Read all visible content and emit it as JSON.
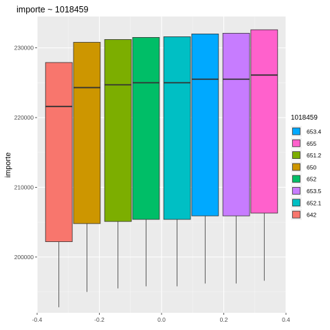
{
  "chart_data": {
    "type": "boxplot",
    "title": "importe ~ 1018459",
    "xlabel": "",
    "ylabel": "importe",
    "xlim": [
      -0.4,
      0.4
    ],
    "ylim": [
      192000,
      234500
    ],
    "x_ticks": [
      -0.4,
      -0.2,
      0.0,
      0.2,
      0.4
    ],
    "x_tick_labels": [
      "-0.4",
      "-0.2",
      "0.0",
      "0.2",
      "0.4"
    ],
    "y_ticks": [
      200000,
      210000,
      220000,
      230000
    ],
    "y_tick_labels": [
      "200000",
      "210000",
      "220000",
      "230000"
    ],
    "grid": true,
    "legend": {
      "title": "1018459",
      "placement": "right",
      "entries": [
        {
          "label": "653.4",
          "color": "#00A9FF"
        },
        {
          "label": "655",
          "color": "#FF61CC"
        },
        {
          "label": "651.2",
          "color": "#7CAE00"
        },
        {
          "label": "650",
          "color": "#CD9600"
        },
        {
          "label": "652",
          "color": "#00BE67"
        },
        {
          "label": "653.5",
          "color": "#C77CFF"
        },
        {
          "label": "652.1",
          "color": "#00BFC4"
        },
        {
          "label": "642",
          "color": "#F8766D"
        }
      ]
    },
    "series": [
      {
        "group": "642",
        "x": -0.33,
        "ymin": 192800,
        "q1": 202200,
        "median": 221600,
        "q3": 227900,
        "ymax": 227900,
        "color": "#F8766D"
      },
      {
        "group": "650",
        "x": -0.24,
        "ymin": 195000,
        "q1": 204800,
        "median": 224300,
        "q3": 230800,
        "ymax": 230800,
        "color": "#CD9600"
      },
      {
        "group": "651.2",
        "x": -0.14,
        "ymin": 195500,
        "q1": 205100,
        "median": 224700,
        "q3": 231200,
        "ymax": 231200,
        "color": "#7CAE00"
      },
      {
        "group": "652",
        "x": -0.05,
        "ymin": 195800,
        "q1": 205400,
        "median": 225000,
        "q3": 231500,
        "ymax": 231500,
        "color": "#00BE67"
      },
      {
        "group": "652.1",
        "x": 0.05,
        "ymin": 195800,
        "q1": 205400,
        "median": 225000,
        "q3": 231600,
        "ymax": 231600,
        "color": "#00BFC4"
      },
      {
        "group": "653.4",
        "x": 0.14,
        "ymin": 196200,
        "q1": 205900,
        "median": 225500,
        "q3": 232000,
        "ymax": 232000,
        "color": "#00A9FF"
      },
      {
        "group": "653.5",
        "x": 0.24,
        "ymin": 196200,
        "q1": 205900,
        "median": 225500,
        "q3": 232100,
        "ymax": 232100,
        "color": "#C77CFF"
      },
      {
        "group": "655",
        "x": 0.33,
        "ymin": 196600,
        "q1": 206300,
        "median": 226100,
        "q3": 232600,
        "ymax": 232600,
        "color": "#FF61CC"
      }
    ]
  }
}
